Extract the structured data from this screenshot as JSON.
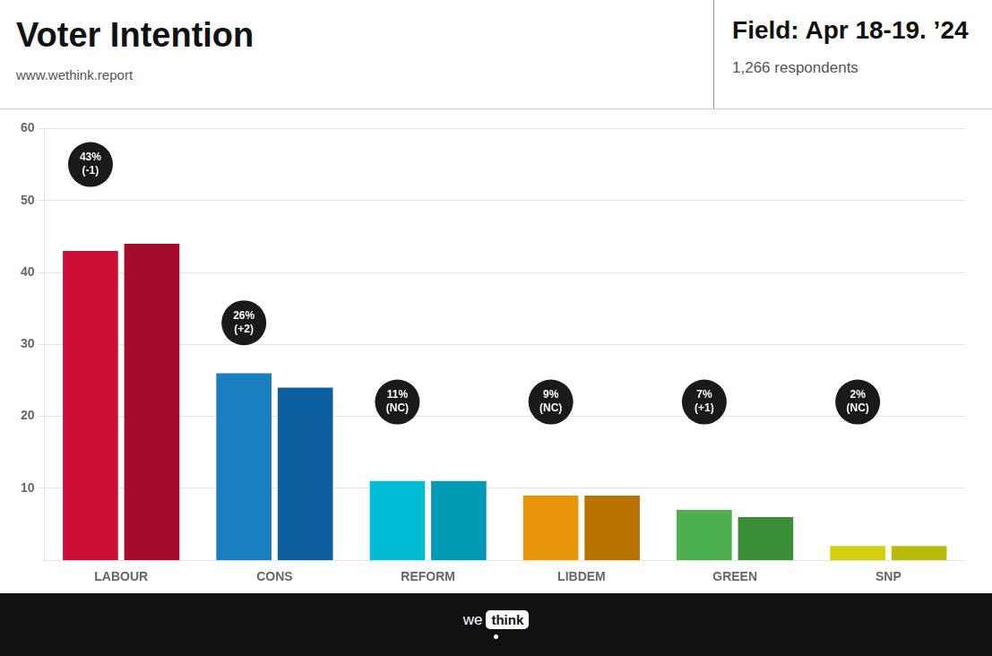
{
  "chart_data": {
    "type": "bar",
    "title": "Voter Intention",
    "subtitle": "www.wethink.report",
    "header_texts": [
      "Field: Apr 18-19. ’24",
      "1,266 respondents"
    ],
    "footer_texts": [
      "we",
      "think"
    ],
    "categories": [
      "LABOUR",
      "CONS",
      "REFORM",
      "LIBDEM",
      "GREEN",
      "SNP"
    ],
    "series": [
      {
        "colors": [
          "#cc0e35",
          "#1a7fc1",
          "#00bcd4",
          "#e8950a",
          "#4caf50",
          "#d4d010"
        ],
        "values": [
          43,
          26,
          11,
          9,
          7,
          2
        ]
      },
      {
        "colors": [
          "#a50b2a",
          "#0d5fa0",
          "#009ab5",
          "#b87200",
          "#3a8e35",
          "#baba08"
        ],
        "values": [
          44,
          24,
          11,
          9,
          6,
          2
        ]
      }
    ],
    "ylim": [
      0,
      60
    ],
    "yticks": [
      10,
      20,
      30,
      40,
      50,
      60
    ],
    "grid": true,
    "annotations": [
      {
        "category": "LABOUR",
        "y": 55,
        "text": [
          "43%",
          "(-1)"
        ],
        "color": "#1a1a1a",
        "text_color": "#ffffff"
      },
      {
        "category": "CONS",
        "y": 33,
        "text": [
          "26%",
          "(+2)"
        ],
        "color": "#1a1a1a",
        "text_color": "#ffffff"
      },
      {
        "category": "REFORM",
        "y": 22,
        "text": [
          "11%",
          "(NC)"
        ],
        "color": "#1a1a1a",
        "text_color": "#ffffff"
      },
      {
        "category": "LIBDEM",
        "y": 22,
        "text": [
          "9%",
          "(NC)"
        ],
        "color": "#1a1a1a",
        "text_color": "#ffffff"
      },
      {
        "category": "GREEN",
        "y": 22,
        "text": [
          "7%",
          "(+1)"
        ],
        "color": "#1a1a1a",
        "text_color": "#ffffff"
      },
      {
        "category": "SNP",
        "y": 22,
        "text": [
          "2%",
          "(NC)"
        ],
        "color": "#1a1a1a",
        "text_color": "#ffffff"
      }
    ]
  }
}
